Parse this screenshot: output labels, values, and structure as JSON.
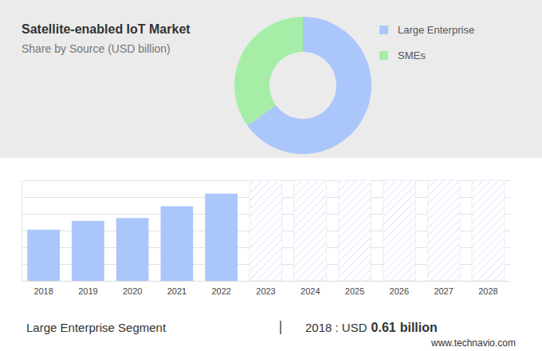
{
  "chart_data": [
    {
      "type": "pie",
      "title": "Satellite-enabled IoT Market",
      "subtitle": "Share by Source (USD billion)",
      "categories": [
        "Large Enterprise",
        "SMEs"
      ],
      "values": [
        65,
        35
      ],
      "colors": [
        "#abc6fb",
        "#a6eea8"
      ],
      "legend": "right"
    },
    {
      "type": "bar",
      "categories": [
        "2018",
        "2019",
        "2020",
        "2021",
        "2022",
        "2023",
        "2024",
        "2025",
        "2026",
        "2027",
        "2028"
      ],
      "values": [
        0.61,
        0.715,
        0.75,
        0.89,
        1.04,
        null,
        null,
        null,
        null,
        null,
        null
      ],
      "color": "#abc6fb",
      "ylim": [
        0,
        1.2
      ],
      "yticks": [
        0,
        0.2,
        0.4,
        0.6,
        0.8,
        1.0,
        1.2
      ],
      "grid": true,
      "tick_labels": "x",
      "annotations": [
        "Large Enterprise Segment",
        "2018 : USD",
        "0.61",
        "billion"
      ]
    }
  ],
  "source": "www.technavio.com"
}
